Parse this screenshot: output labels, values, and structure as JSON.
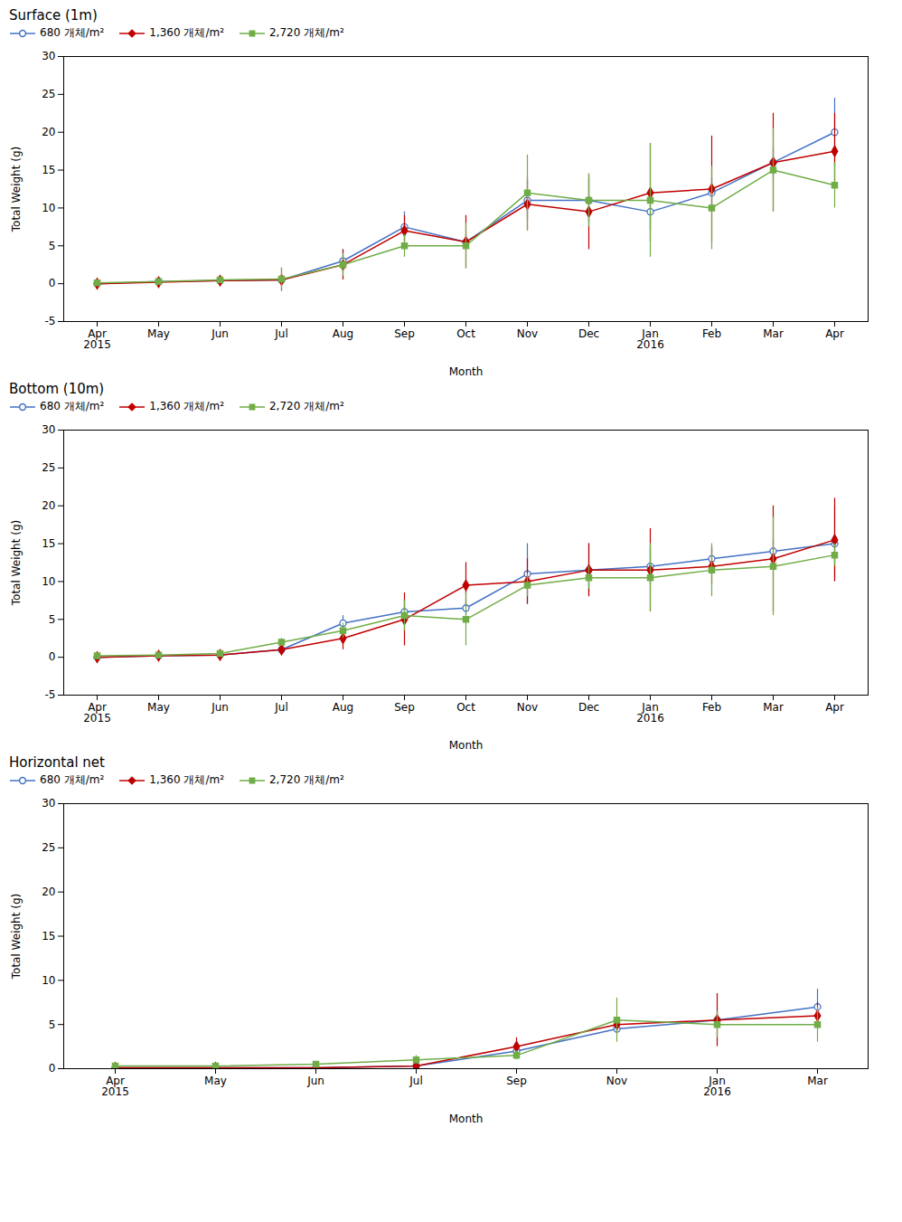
{
  "chart_data": [
    {
      "type": "line",
      "title": "Surface (1m)",
      "xlabel": "Month",
      "ylabel": "Total Weight (g)",
      "categories": [
        "Apr\n2015",
        "May",
        "Jun",
        "Jul",
        "Aug",
        "Sep",
        "Oct",
        "Nov",
        "Dec",
        "Jan\n2016",
        "Feb",
        "Mar",
        "Apr"
      ],
      "series": [
        {
          "name": "680 개체/m²",
          "color": "#4472C4",
          "marker": "circle-open",
          "values": [
            0.0,
            0.3,
            0.4,
            0.5,
            3.0,
            7.5,
            5.5,
            11.0,
            11.0,
            9.5,
            12.0,
            16.0,
            20.0
          ],
          "errors": [
            0.1,
            0.1,
            0.1,
            0.5,
            1.5,
            2.0,
            1.0,
            2.5,
            3.0,
            2.5,
            2.0,
            2.0,
            4.5
          ]
        },
        {
          "name": "1,360 개체/m²",
          "color": "#C00000",
          "marker": "diamond",
          "values": [
            0.0,
            0.2,
            0.4,
            0.5,
            2.5,
            7.0,
            5.5,
            10.5,
            9.5,
            12.0,
            12.5,
            16.0,
            17.5
          ],
          "errors": [
            0.1,
            0.1,
            0.1,
            1.5,
            2.0,
            2.0,
            3.5,
            3.5,
            5.0,
            6.5,
            7.0,
            6.5,
            5.0
          ]
        },
        {
          "name": "2,720 개체/m²",
          "color": "#70AD47",
          "marker": "square",
          "values": [
            0.1,
            0.3,
            0.5,
            0.6,
            2.5,
            5.0,
            5.0,
            12.0,
            11.0,
            11.0,
            10.0,
            15.0,
            13.0
          ],
          "errors": [
            0.1,
            0.2,
            0.2,
            1.5,
            1.5,
            1.5,
            3.0,
            5.0,
            3.5,
            7.5,
            5.5,
            5.5,
            3.0
          ]
        }
      ],
      "ylim": [
        -5,
        30
      ],
      "yticks": [
        -5,
        0,
        5,
        10,
        15,
        20,
        25,
        30
      ],
      "grid": false,
      "legend": "upper left"
    },
    {
      "type": "line",
      "title": "Bottom (10m)",
      "xlabel": "Month",
      "ylabel": "Total Weight (g)",
      "categories": [
        "Apr\n2015",
        "May",
        "Jun",
        "Jul",
        "Aug",
        "Sep",
        "Oct",
        "Nov",
        "Dec",
        "Jan\n2016",
        "Feb",
        "Mar",
        "Apr"
      ],
      "series": [
        {
          "name": "680 개체/m²",
          "color": "#4472C4",
          "marker": "circle-open",
          "values": [
            0.0,
            0.2,
            0.3,
            1.0,
            4.5,
            6.0,
            6.5,
            11.0,
            11.5,
            12.0,
            13.0,
            14.0,
            15.0
          ],
          "errors": [
            0.1,
            0.1,
            0.1,
            0.5,
            1.0,
            1.5,
            1.0,
            4.0,
            3.5,
            2.5,
            1.5,
            1.5,
            5.0
          ]
        },
        {
          "name": "1,360 개체/m²",
          "color": "#C00000",
          "marker": "diamond",
          "values": [
            0.0,
            0.2,
            0.3,
            1.0,
            2.5,
            5.0,
            9.5,
            10.0,
            11.5,
            11.5,
            12.0,
            13.0,
            15.5
          ],
          "errors": [
            0.1,
            0.1,
            0.1,
            0.5,
            1.5,
            3.5,
            3.0,
            3.0,
            3.5,
            5.5,
            2.5,
            7.0,
            5.5
          ]
        },
        {
          "name": "2,720 개체/m²",
          "color": "#70AD47",
          "marker": "square",
          "values": [
            0.2,
            0.3,
            0.5,
            2.0,
            3.5,
            5.5,
            5.0,
            9.5,
            10.5,
            10.5,
            11.5,
            12.0,
            13.5
          ],
          "errors": [
            0.1,
            0.1,
            0.2,
            0.5,
            1.0,
            2.0,
            3.5,
            1.5,
            1.5,
            4.5,
            3.5,
            6.5,
            1.5
          ]
        }
      ],
      "ylim": [
        -5,
        30
      ],
      "yticks": [
        -5,
        0,
        5,
        10,
        15,
        20,
        25,
        30
      ],
      "grid": false,
      "legend": "upper left"
    },
    {
      "type": "line",
      "title": "Horizontal net",
      "xlabel": "Month",
      "ylabel": "Total Weight (g)",
      "categories": [
        "Apr\n2015",
        "May",
        "Jun",
        "Jul",
        "Sep",
        "Nov",
        "Jan\n2016",
        "Mar"
      ],
      "series": [
        {
          "name": "680 개체/m²",
          "color": "#4472C4",
          "marker": "circle-open",
          "values": [
            0.1,
            0.1,
            0.1,
            0.3,
            2.0,
            4.5,
            5.5,
            7.0
          ],
          "errors": [
            0.05,
            0.05,
            0.05,
            0.1,
            0.5,
            0.5,
            1.0,
            2.0
          ]
        },
        {
          "name": "1,360 개체/m²",
          "color": "#C00000",
          "marker": "diamond",
          "values": [
            0.1,
            0.1,
            0.1,
            0.3,
            2.5,
            5.0,
            5.5,
            6.0
          ],
          "errors": [
            0.05,
            0.05,
            0.05,
            0.1,
            1.0,
            0.8,
            3.0,
            1.5
          ]
        },
        {
          "name": "2,720 개체/m²",
          "color": "#70AD47",
          "marker": "square",
          "values": [
            0.3,
            0.3,
            0.5,
            1.0,
            1.5,
            5.5,
            5.0,
            5.0
          ],
          "errors": [
            0.1,
            0.1,
            0.2,
            0.5,
            0.5,
            2.5,
            1.5,
            2.0
          ]
        }
      ],
      "ylim": [
        0,
        30
      ],
      "yticks": [
        0,
        5,
        10,
        15,
        20,
        25,
        30
      ],
      "grid": false,
      "legend": "upper left"
    }
  ]
}
